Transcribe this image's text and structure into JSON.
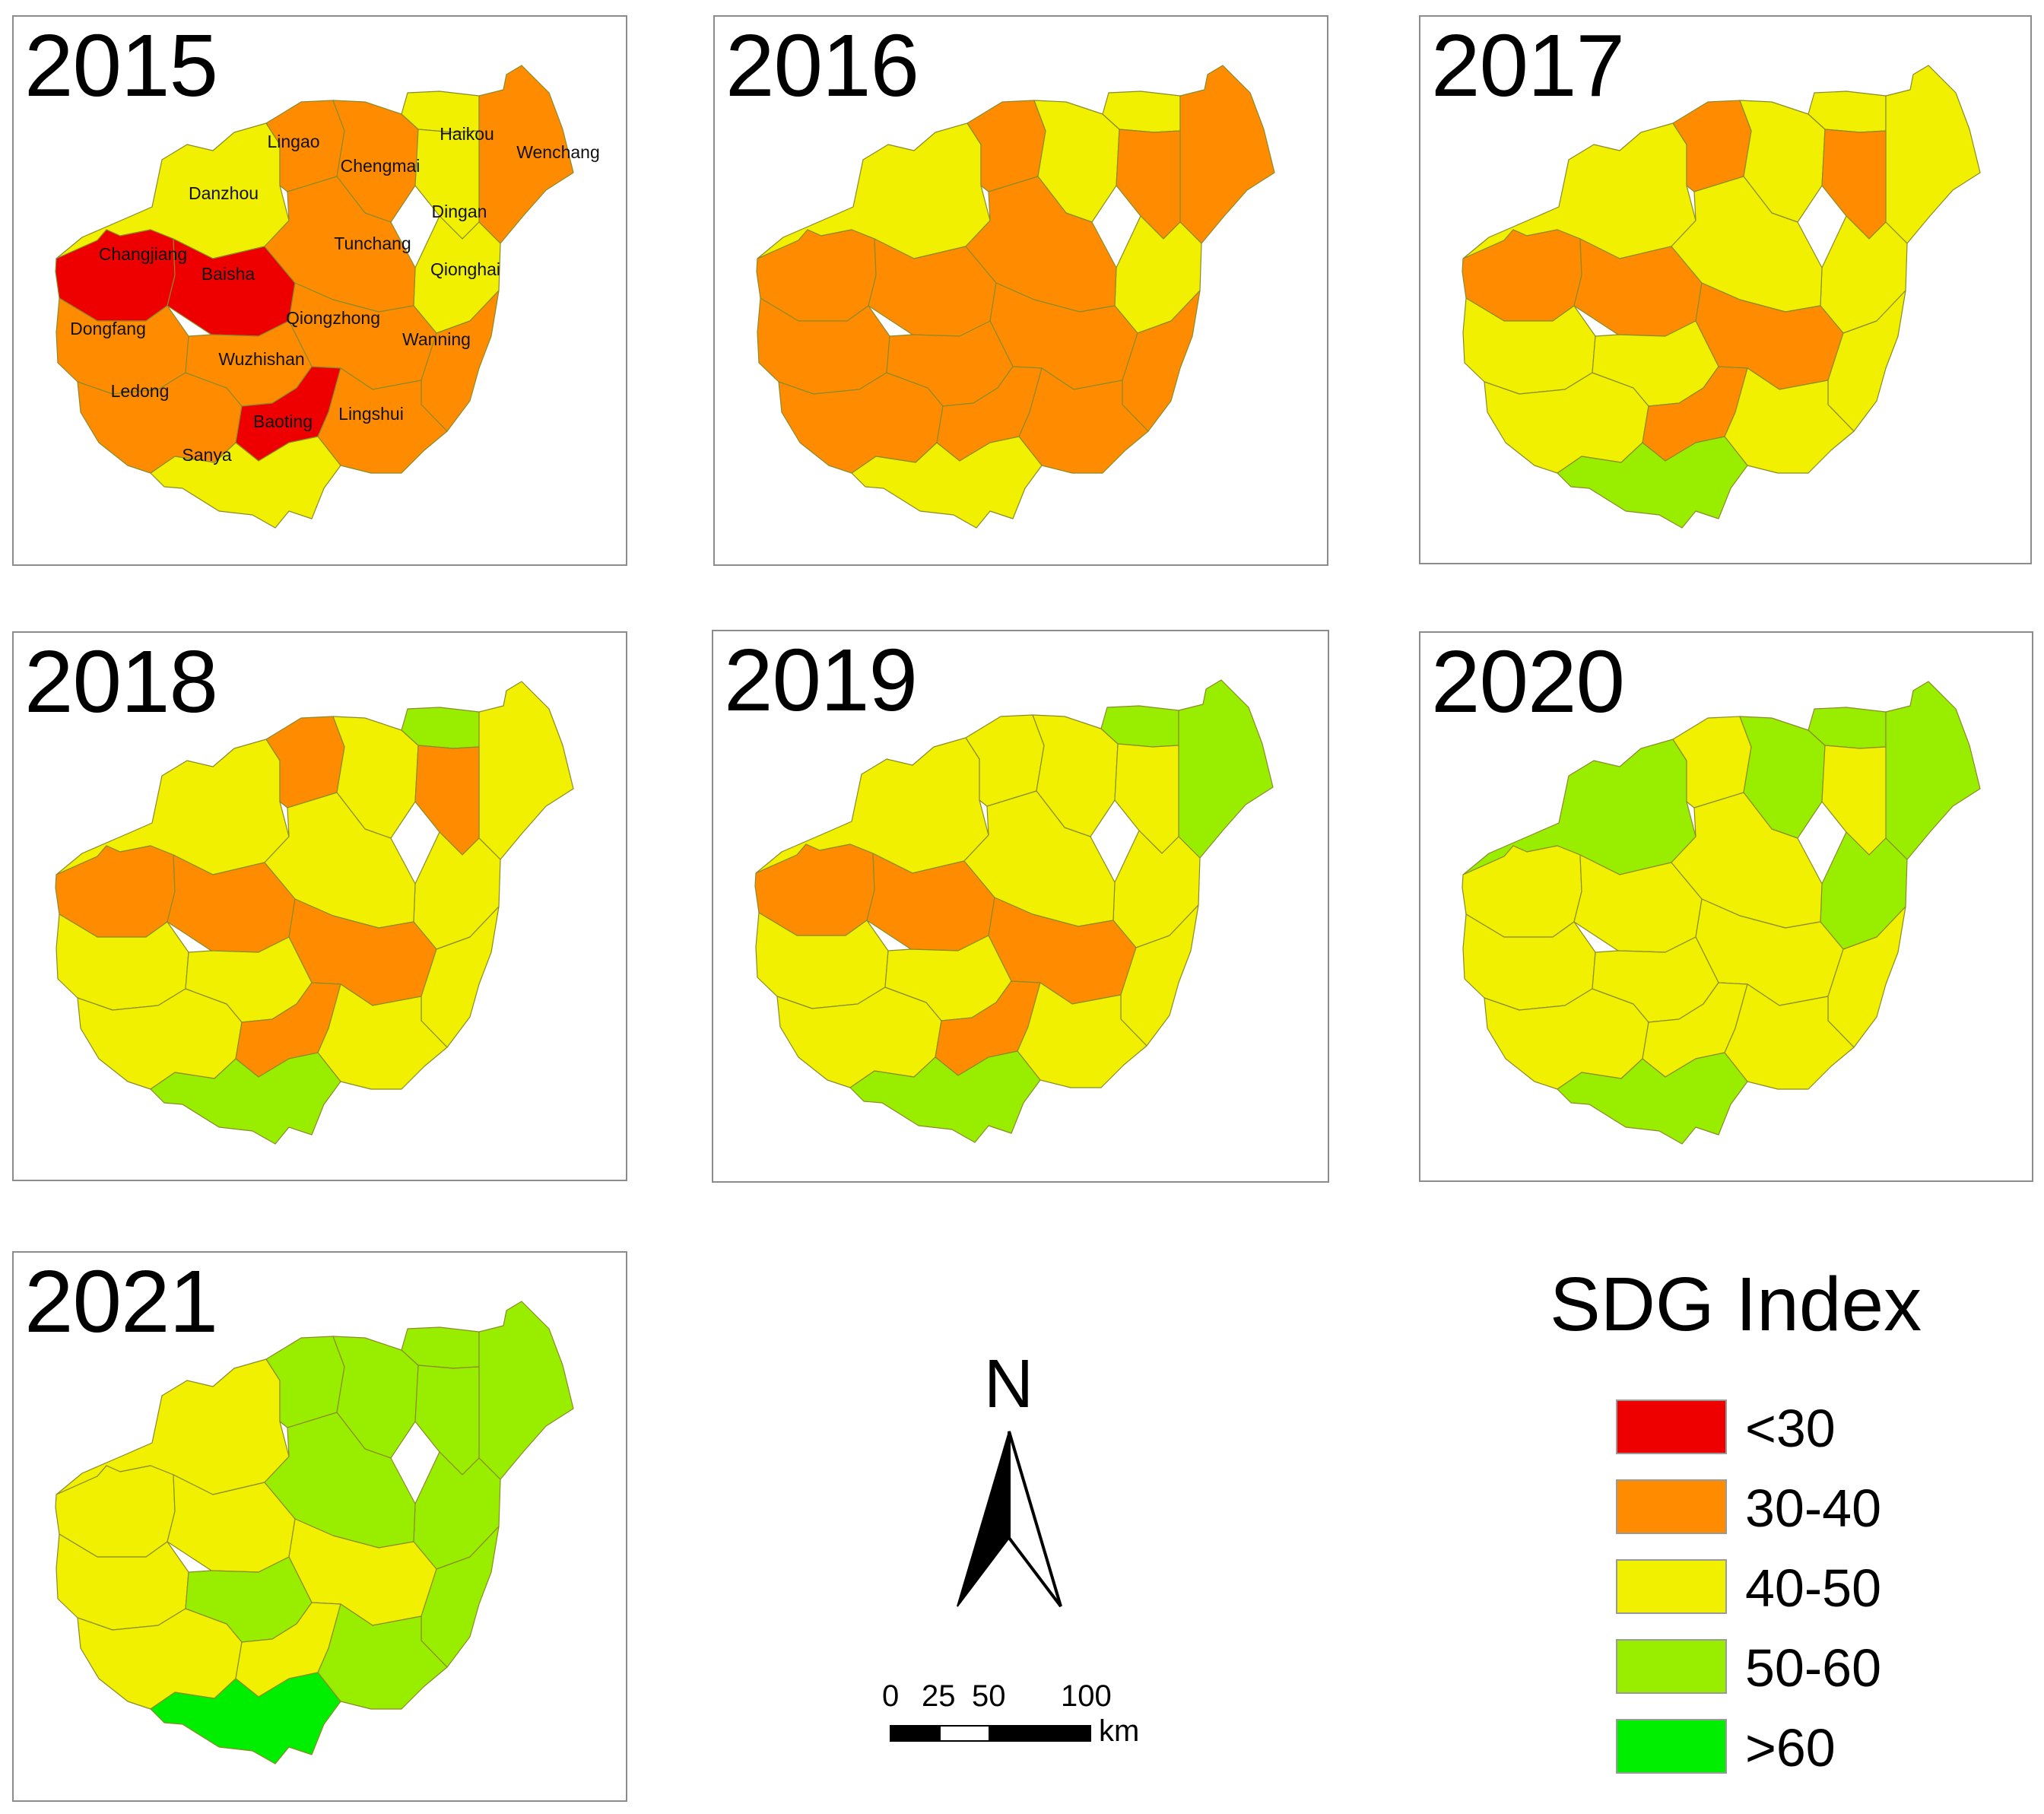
{
  "colors": {
    "lt30": "#ee0000",
    "c30_40": "#ff8c00",
    "c40_50": "#f0f000",
    "c50_60": "#99ee00",
    "gt60": "#00ee00",
    "border": "#8a8a2a"
  },
  "panels": [
    {
      "year": "2015",
      "counties": {
        "Danzhou": "c40_50",
        "Lingao": "c30_40",
        "Chengmai": "c30_40",
        "Haikou": "c40_50",
        "Wenchang": "c30_40",
        "Dingan": "c40_50",
        "Qionghai": "c40_50",
        "Changjiang": "lt30",
        "Baisha": "lt30",
        "Tunchang": "c30_40",
        "Qiongzhong": "c30_40",
        "Wanning": "c30_40",
        "Dongfang": "c30_40",
        "Ledong": "c30_40",
        "Wuzhishan": "c30_40",
        "Baoting": "lt30",
        "Lingshui": "c30_40",
        "Sanya": "c40_50"
      },
      "labels": [
        {
          "id": "Lingao",
          "text": "Lingao"
        },
        {
          "id": "Haikou",
          "text": "Haikou"
        },
        {
          "id": "Wenchang",
          "text": "Wenchang"
        },
        {
          "id": "Chengmai",
          "text": "Chengmai"
        },
        {
          "id": "Danzhou",
          "text": "Danzhou"
        },
        {
          "id": "Dingan",
          "text": "Dingan"
        },
        {
          "id": "Tunchang",
          "text": "Tunchang"
        },
        {
          "id": "Changjiang",
          "text": "Changjiang"
        },
        {
          "id": "Baisha",
          "text": "Baisha"
        },
        {
          "id": "Qionghai",
          "text": "Qionghai"
        },
        {
          "id": "Qiongzhong",
          "text": "Qiongzhong"
        },
        {
          "id": "Dongfang",
          "text": "Dongfang"
        },
        {
          "id": "Wanning",
          "text": "Wanning"
        },
        {
          "id": "Wuzhishan",
          "text": "Wuzhishan"
        },
        {
          "id": "Ledong",
          "text": "Ledong"
        },
        {
          "id": "Baoting",
          "text": "Baoting"
        },
        {
          "id": "Lingshui",
          "text": "Lingshui"
        },
        {
          "id": "Sanya",
          "text": "Sanya"
        }
      ]
    },
    {
      "year": "2016",
      "counties": {
        "Danzhou": "c40_50",
        "Lingao": "c30_40",
        "Chengmai": "c40_50",
        "Haikou": "c40_50",
        "Wenchang": "c30_40",
        "Dingan": "c30_40",
        "Qionghai": "c40_50",
        "Changjiang": "c30_40",
        "Baisha": "c30_40",
        "Tunchang": "c30_40",
        "Qiongzhong": "c30_40",
        "Wanning": "c30_40",
        "Dongfang": "c30_40",
        "Ledong": "c30_40",
        "Wuzhishan": "c30_40",
        "Baoting": "c30_40",
        "Lingshui": "c30_40",
        "Sanya": "c40_50"
      },
      "labels": []
    },
    {
      "year": "2017",
      "counties": {
        "Danzhou": "c40_50",
        "Lingao": "c30_40",
        "Chengmai": "c40_50",
        "Haikou": "c40_50",
        "Wenchang": "c40_50",
        "Dingan": "c30_40",
        "Qionghai": "c40_50",
        "Changjiang": "c30_40",
        "Baisha": "c30_40",
        "Tunchang": "c40_50",
        "Qiongzhong": "c30_40",
        "Wanning": "c40_50",
        "Dongfang": "c40_50",
        "Ledong": "c40_50",
        "Wuzhishan": "c40_50",
        "Baoting": "c30_40",
        "Lingshui": "c40_50",
        "Sanya": "c50_60"
      },
      "labels": []
    },
    {
      "year": "2018",
      "counties": {
        "Danzhou": "c40_50",
        "Lingao": "c30_40",
        "Chengmai": "c40_50",
        "Haikou": "c50_60",
        "Wenchang": "c40_50",
        "Dingan": "c30_40",
        "Qionghai": "c40_50",
        "Changjiang": "c30_40",
        "Baisha": "c30_40",
        "Tunchang": "c40_50",
        "Qiongzhong": "c30_40",
        "Wanning": "c40_50",
        "Dongfang": "c40_50",
        "Ledong": "c40_50",
        "Wuzhishan": "c40_50",
        "Baoting": "c30_40",
        "Lingshui": "c40_50",
        "Sanya": "c50_60"
      },
      "labels": []
    },
    {
      "year": "2019",
      "counties": {
        "Danzhou": "c40_50",
        "Lingao": "c40_50",
        "Chengmai": "c40_50",
        "Haikou": "c50_60",
        "Wenchang": "c50_60",
        "Dingan": "c40_50",
        "Qionghai": "c40_50",
        "Changjiang": "c30_40",
        "Baisha": "c30_40",
        "Tunchang": "c40_50",
        "Qiongzhong": "c30_40",
        "Wanning": "c40_50",
        "Dongfang": "c40_50",
        "Ledong": "c40_50",
        "Wuzhishan": "c40_50",
        "Baoting": "c30_40",
        "Lingshui": "c40_50",
        "Sanya": "c50_60"
      },
      "labels": []
    },
    {
      "year": "2020",
      "counties": {
        "Danzhou": "c50_60",
        "Lingao": "c40_50",
        "Chengmai": "c50_60",
        "Haikou": "c50_60",
        "Wenchang": "c50_60",
        "Dingan": "c40_50",
        "Qionghai": "c50_60",
        "Changjiang": "c40_50",
        "Baisha": "c40_50",
        "Tunchang": "c40_50",
        "Qiongzhong": "c40_50",
        "Wanning": "c40_50",
        "Dongfang": "c40_50",
        "Ledong": "c40_50",
        "Wuzhishan": "c40_50",
        "Baoting": "c40_50",
        "Lingshui": "c40_50",
        "Sanya": "c50_60"
      },
      "labels": []
    },
    {
      "year": "2021",
      "counties": {
        "Danzhou": "c40_50",
        "Lingao": "c50_60",
        "Chengmai": "c50_60",
        "Haikou": "c50_60",
        "Wenchang": "c50_60",
        "Dingan": "c50_60",
        "Qionghai": "c50_60",
        "Changjiang": "c40_50",
        "Baisha": "c40_50",
        "Tunchang": "c50_60",
        "Qiongzhong": "c40_50",
        "Wanning": "c50_60",
        "Dongfang": "c40_50",
        "Ledong": "c40_50",
        "Wuzhishan": "c50_60",
        "Baoting": "c40_50",
        "Lingshui": "c50_60",
        "Sanya": "gt60"
      },
      "labels": []
    }
  ],
  "legend": {
    "title": "SDG Index",
    "items": [
      {
        "label": "<30",
        "color_key": "lt30"
      },
      {
        "label": "30-40",
        "color_key": "c30_40"
      },
      {
        "label": "40-50",
        "color_key": "c40_50"
      },
      {
        "label": "50-60",
        "color_key": "c50_60"
      },
      {
        "label": ">60",
        "color_key": "gt60"
      }
    ]
  },
  "north_arrow": {
    "label": "N"
  },
  "scale_bar": {
    "ticks": [
      "0",
      "25",
      "50",
      "100"
    ],
    "unit": "km"
  }
}
